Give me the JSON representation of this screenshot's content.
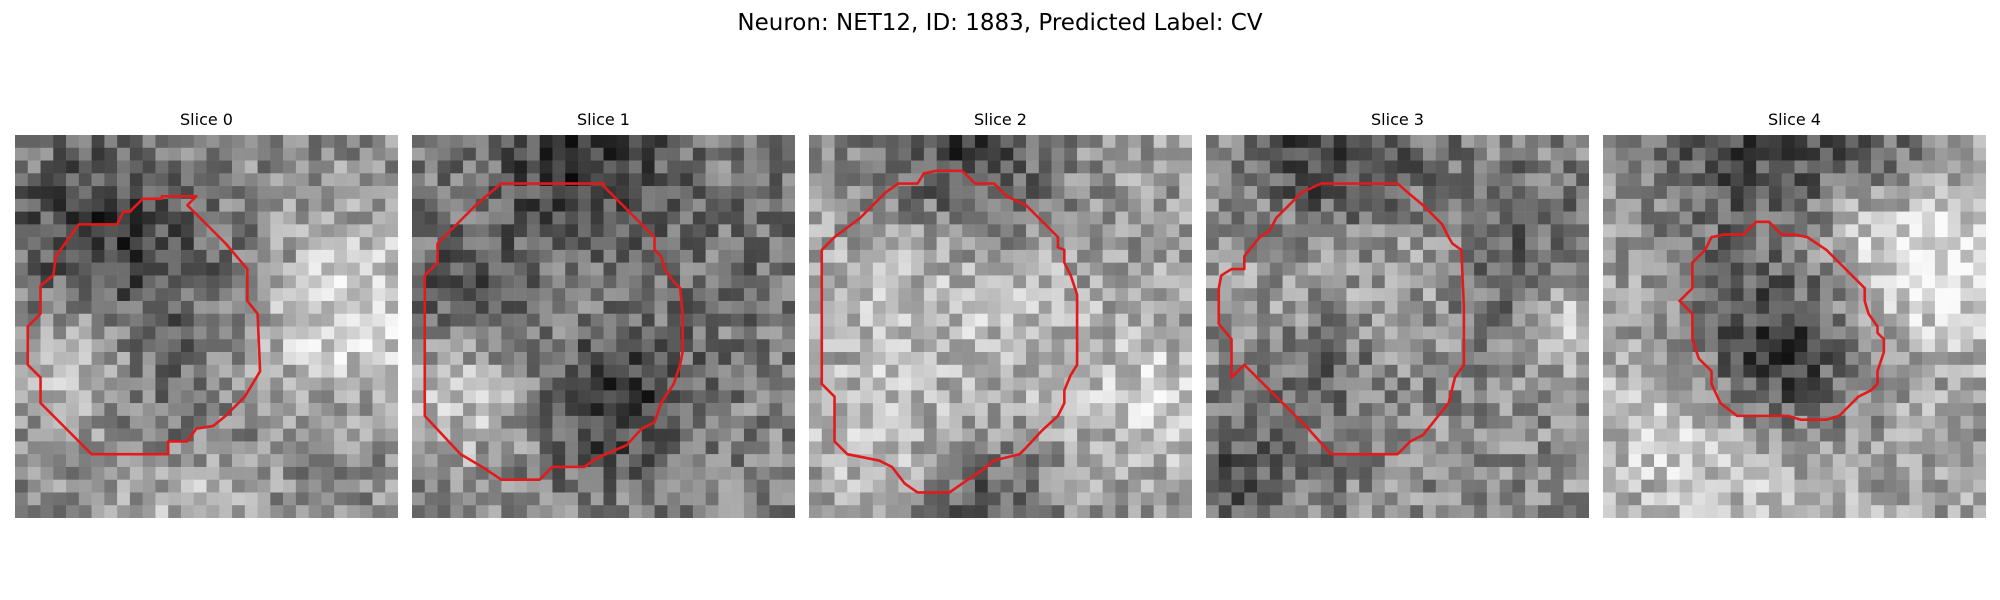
{
  "figure": {
    "title": "Neuron: NET12, ID: 1883, Predicted Label: CV"
  },
  "colors": {
    "contour": "#e31a1c",
    "colormap": "grayscale"
  },
  "panels": [
    {
      "title": "Slice 0"
    },
    {
      "title": "Slice 1"
    },
    {
      "title": "Slice 2"
    },
    {
      "title": "Slice 3"
    },
    {
      "title": "Slice 4"
    }
  ]
}
